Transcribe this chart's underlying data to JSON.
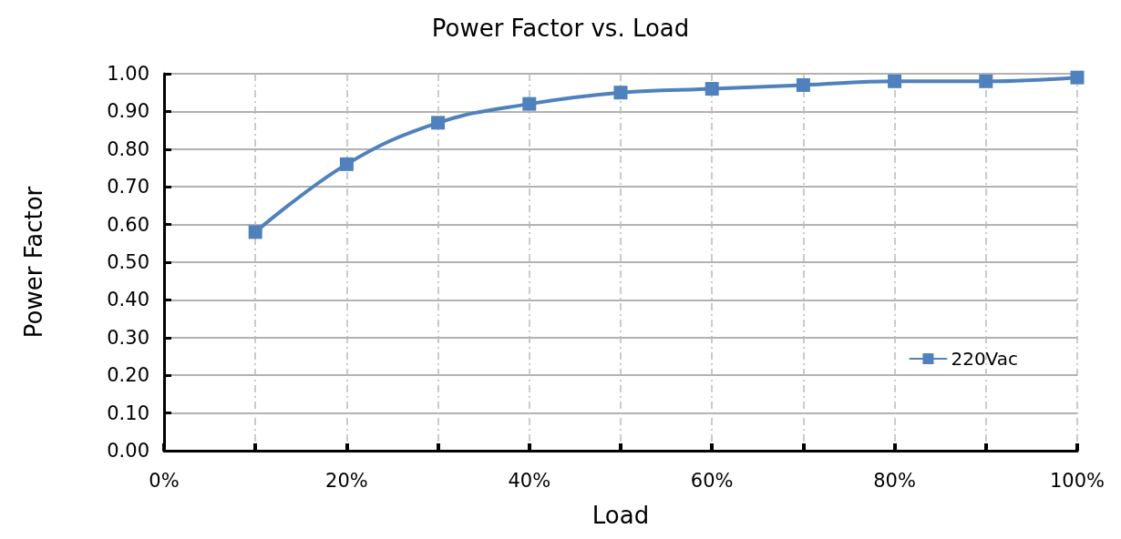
{
  "chart_data": {
    "type": "line",
    "title": "Power Factor vs. Load",
    "xlabel": "Load",
    "ylabel": "Power Factor",
    "x": [
      10,
      20,
      30,
      40,
      50,
      60,
      70,
      80,
      90,
      100
    ],
    "series": [
      {
        "name": "220Vac",
        "color": "#4f81bd",
        "values": [
          0.58,
          0.76,
          0.87,
          0.92,
          0.95,
          0.96,
          0.97,
          0.98,
          0.98,
          0.99
        ]
      }
    ],
    "xlim": [
      0,
      100
    ],
    "xticks": [
      {
        "value": 0,
        "label": "0%"
      },
      {
        "value": 10,
        "label": null
      },
      {
        "value": 20,
        "label": "20%"
      },
      {
        "value": 30,
        "label": null
      },
      {
        "value": 40,
        "label": "40%"
      },
      {
        "value": 50,
        "label": null
      },
      {
        "value": 60,
        "label": "60%"
      },
      {
        "value": 70,
        "label": null
      },
      {
        "value": 80,
        "label": "80%"
      },
      {
        "value": 90,
        "label": null
      },
      {
        "value": 100,
        "label": "100%"
      }
    ],
    "ylim": [
      0,
      1
    ],
    "yticks": [
      {
        "value": 0,
        "label": "0.00"
      },
      {
        "value": 0.1,
        "label": "0.10"
      },
      {
        "value": 0.2,
        "label": "0.20"
      },
      {
        "value": 0.3,
        "label": "0.30"
      },
      {
        "value": 0.4,
        "label": "0.40"
      },
      {
        "value": 0.5,
        "label": "0.50"
      },
      {
        "value": 0.6,
        "label": "0.60"
      },
      {
        "value": 0.7,
        "label": "0.70"
      },
      {
        "value": 0.8,
        "label": "0.80"
      },
      {
        "value": 0.9,
        "label": "0.90"
      },
      {
        "value": 1,
        "label": "1.00"
      }
    ],
    "grid": true,
    "legend": "bottom right",
    "marker": "square",
    "line_style": "solid"
  }
}
